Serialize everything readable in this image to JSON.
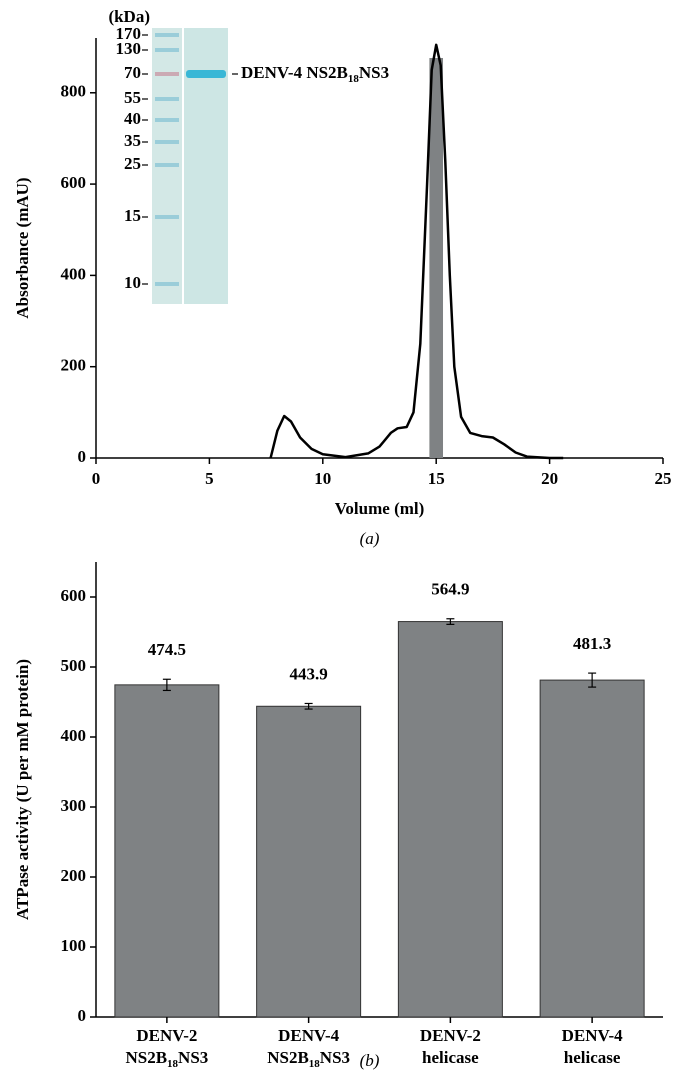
{
  "chart_data": [
    {
      "type": "line",
      "panel_label": "(a)",
      "x_label": "Volume (ml)",
      "y_label": "Absorbance (mAU)",
      "x": [
        7.7,
        8.0,
        8.3,
        8.6,
        9.0,
        9.5,
        10.0,
        11.0,
        12.0,
        12.5,
        13.0,
        13.3,
        13.7,
        14.0,
        14.3,
        14.6,
        14.8,
        15.0,
        15.2,
        15.4,
        15.6,
        15.8,
        16.1,
        16.5,
        17.0,
        17.5,
        18.0,
        18.5,
        19.0,
        20.0,
        20.6
      ],
      "values": [
        0,
        60,
        92,
        80,
        45,
        20,
        8,
        2,
        10,
        25,
        55,
        65,
        68,
        100,
        250,
        600,
        850,
        905,
        860,
        650,
        400,
        200,
        90,
        55,
        48,
        45,
        30,
        12,
        3,
        0,
        0
      ],
      "color": "#000000",
      "band": {
        "x": [
          14.7,
          15.3
        ],
        "color": "#7f8284"
      },
      "xlim": [
        0,
        25
      ],
      "xticks": [
        0,
        5,
        10,
        15,
        20,
        25
      ],
      "ylim": [
        0,
        920
      ],
      "yticks": [
        0,
        200,
        400,
        600,
        800
      ],
      "inset": {
        "unit": "(kDa)",
        "markers": [
          170,
          130,
          70,
          55,
          40,
          35,
          25,
          15,
          10
        ],
        "band_label": "DENV-4 NS2B18NS3"
      }
    },
    {
      "type": "bar",
      "panel_label": "(b)",
      "y_label": "ATPase activity (U per mM protein)",
      "categories": [
        "DENV-2 NS2B18NS3",
        "DENV-4 NS2B18NS3",
        "DENV-2 helicase",
        "DENV-4 helicase"
      ],
      "values": [
        474.5,
        443.9,
        564.9,
        481.3
      ],
      "errors": [
        8,
        4,
        4,
        10
      ],
      "color": "#7f8284",
      "ylim": [
        0,
        650
      ],
      "yticks": [
        0,
        100,
        200,
        300,
        400,
        500,
        600
      ]
    }
  ]
}
